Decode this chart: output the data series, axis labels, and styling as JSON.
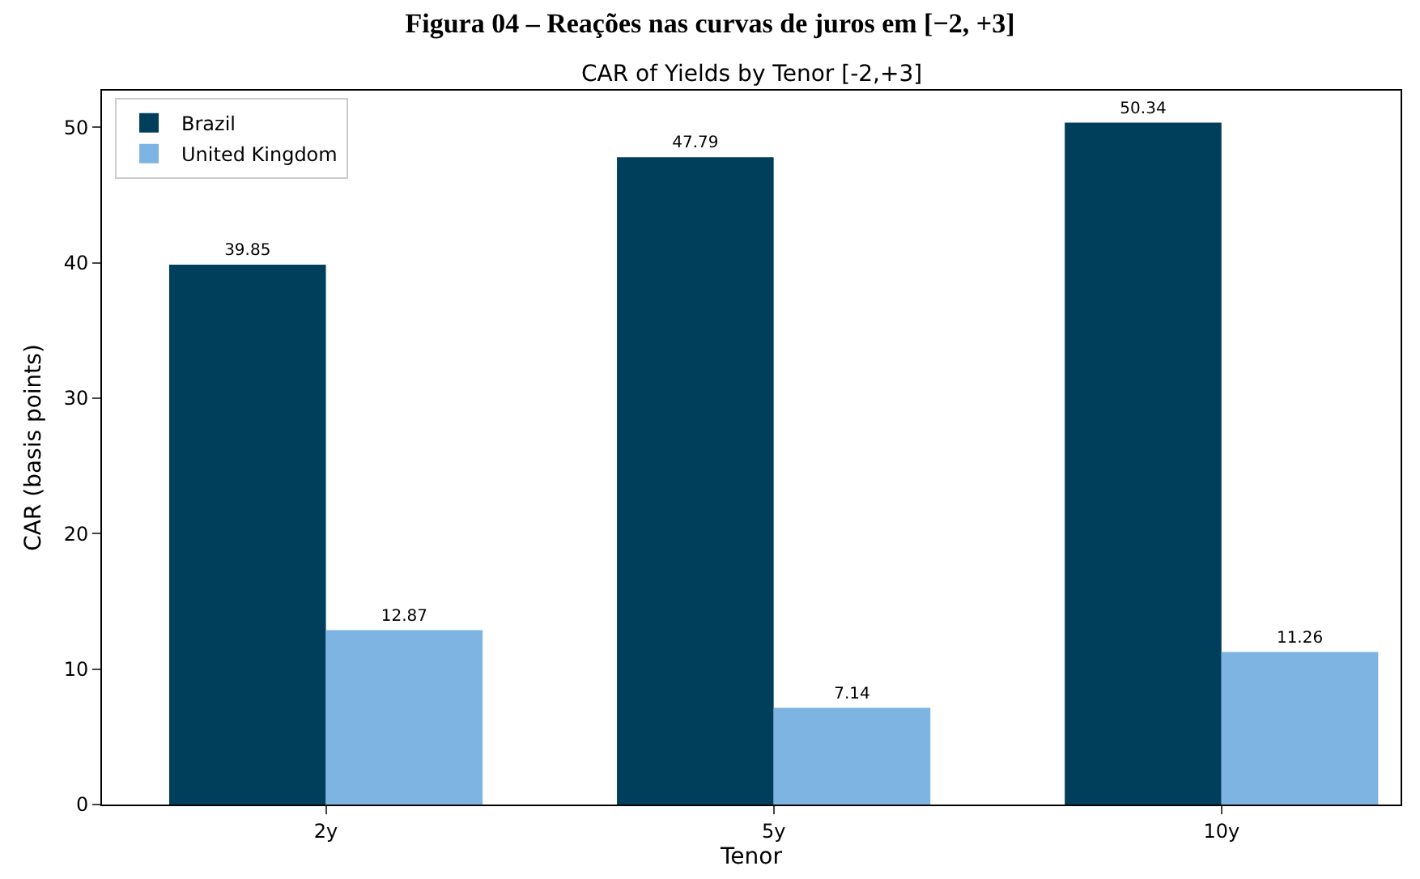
{
  "chart_data": {
    "type": "bar",
    "title": "Figura 04 – Reações nas curvas de juros em [−2, +3]",
    "subtitle": "CAR of Yields by Tenor [-2,+3]",
    "xlabel": "Tenor",
    "ylabel": "CAR (basis points)",
    "categories": [
      "2y",
      "5y",
      "10y"
    ],
    "series": [
      {
        "name": "Brazil",
        "color": "#003f5c",
        "values": [
          39.85,
          47.79,
          50.34
        ]
      },
      {
        "name": "United Kingdom",
        "color": "#7eb4e2",
        "values": [
          12.87,
          7.14,
          11.26
        ]
      }
    ],
    "ylim": [
      0,
      52.7
    ],
    "yticks": [
      0,
      10,
      20,
      30,
      40,
      50
    ],
    "data_labels": true,
    "legend": "top left",
    "grid": false
  }
}
